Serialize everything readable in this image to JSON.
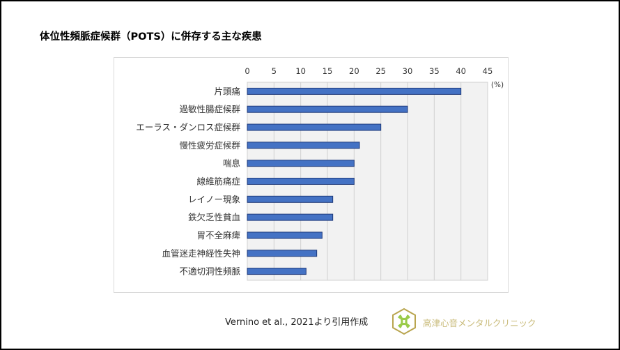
{
  "title": "体位性頻脈症候群（POTS）に併存する主な疾患",
  "chart_data": {
    "type": "bar",
    "orientation": "horizontal",
    "categories": [
      "片頭痛",
      "過敏性腸症候群",
      "エーラス・ダンロス症候群",
      "慢性疲労症候群",
      "喘息",
      "線維筋痛症",
      "レイノー現象",
      "鉄欠乏性貧血",
      "胃不全麻痺",
      "血管迷走神経性失神",
      "不適切洞性頻脈"
    ],
    "values": [
      40,
      30,
      25,
      21,
      20,
      20,
      16,
      16,
      14,
      13,
      11
    ],
    "xlim": [
      0,
      45
    ],
    "xticks": [
      "0",
      "5",
      "10",
      "15",
      "20",
      "25",
      "30",
      "35",
      "40",
      "45"
    ],
    "unit_label": "(%)",
    "x_axis_position": "top",
    "grid": true,
    "bar_color": "#4472c4",
    "bar_edge_color": "#1f3a7a",
    "plot_background": "#f2f2f2"
  },
  "citation": "Vernino et al., 2021より引用作成",
  "clinic_name": "高津心音メンタルクリニック",
  "brand_color": "#c9bb7a"
}
